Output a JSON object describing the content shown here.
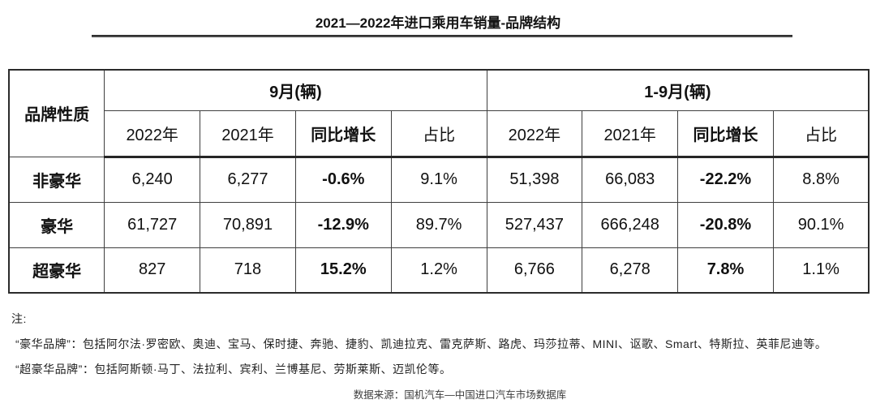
{
  "title": "2021—2022年进口乘用车销量-品牌结构",
  "table": {
    "corner_header": "品牌性质",
    "groups": [
      {
        "label": "9月(辆)",
        "subheaders": [
          "2022年",
          "2021年",
          "同比增长",
          "占比"
        ]
      },
      {
        "label": "1-9月(辆)",
        "subheaders": [
          "2022年",
          "2021年",
          "同比增长",
          "占比"
        ]
      }
    ],
    "rows": [
      {
        "label": "非豪华",
        "cells": [
          "6,240",
          "6,277",
          "-0.6%",
          "9.1%",
          "51,398",
          "66,083",
          "-22.2%",
          "8.8%"
        ]
      },
      {
        "label": "豪华",
        "cells": [
          "61,727",
          "70,891",
          "-12.9%",
          "89.7%",
          "527,437",
          "666,248",
          "-20.8%",
          "90.1%"
        ]
      },
      {
        "label": "超豪华",
        "cells": [
          "827",
          "718",
          "15.2%",
          "1.2%",
          "6,766",
          "6,278",
          "7.8%",
          "1.1%"
        ]
      }
    ]
  },
  "notes": {
    "heading": "注:",
    "line1": "“豪华品牌”：包括阿尔法·罗密欧、奥迪、宝马、保时捷、奔驰、捷豹、凯迪拉克、雷克萨斯、路虎、玛莎拉蒂、MINI、讴歌、Smart、特斯拉、英菲尼迪等。",
    "line2": "“超豪华品牌”：包括阿斯顿·马丁、法拉利、宾利、兰博基尼、劳斯莱斯、迈凯伦等。"
  },
  "source": "数据来源：国机汽车—中国进口汽车市场数据库",
  "colors": {
    "text": "#1a1a1a",
    "border": "#3f3f3f",
    "outer_border": "#2b2b2b"
  },
  "chart_data": {
    "type": "table",
    "title": "2021—2022年进口乘用车销量-品牌结构",
    "column_groups": [
      "9月(辆)",
      "1-9月(辆)"
    ],
    "columns": [
      "品牌性质",
      "9月 2022年",
      "9月 2021年",
      "9月 同比增长",
      "9月 占比",
      "1-9月 2022年",
      "1-9月 2021年",
      "1-9月 同比增长",
      "1-9月 占比"
    ],
    "rows": [
      [
        "非豪华",
        6240,
        6277,
        "-0.6%",
        "9.1%",
        51398,
        66083,
        "-22.2%",
        "8.8%"
      ],
      [
        "豪华",
        61727,
        70891,
        "-12.9%",
        "89.7%",
        527437,
        666248,
        "-20.8%",
        "90.1%"
      ],
      [
        "超豪华",
        827,
        718,
        "15.2%",
        "1.2%",
        6766,
        6278,
        "7.8%",
        "1.1%"
      ]
    ],
    "source": "数据来源：国机汽车—中国进口汽车市场数据库"
  }
}
